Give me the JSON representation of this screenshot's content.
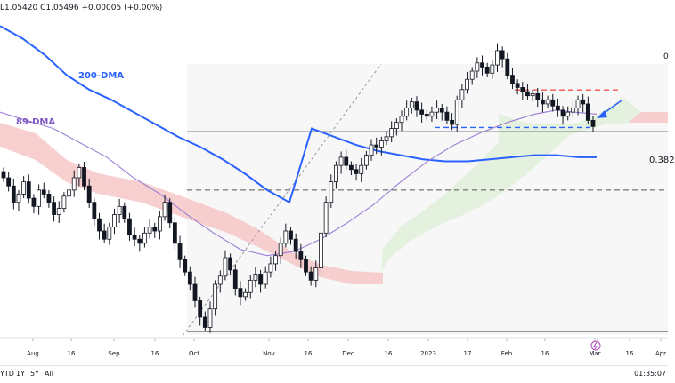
{
  "ohlc": {
    "text": "L1.05420 C1.05496 +0.00005 (+0.00%)"
  },
  "annotations": {
    "dma200": "200-DMA",
    "dma89": "89-DMA",
    "fib": "0.382",
    "edge": "0"
  },
  "timeframes": [
    "YTD",
    "1Y",
    "5Y",
    "All"
  ],
  "clock": "01:35:07",
  "colors": {
    "candle": "#131722",
    "dma200": "#2962ff",
    "dma89": "#9c7fd6",
    "cloud_bull": "#e2f0dc",
    "cloud_bear": "#f6c7c7",
    "hline": "#555555",
    "dashed_red": "#ef5350",
    "dashed_blue": "#2962ff",
    "arrow": "#2962ff",
    "event": "#ab47bc"
  },
  "chart_data": {
    "type": "candlestick",
    "title": "",
    "x_ticks": [
      "Aug",
      "16",
      "Sep",
      "16",
      "Oct",
      "Nov",
      "16",
      "Dec",
      "16",
      "2023",
      "17",
      "Feb",
      "16",
      "Mar",
      "16",
      "Apr"
    ],
    "price_ylim": [
      0.952,
      1.108
    ],
    "closes": [
      1.03,
      1.026,
      1.018,
      1.022,
      1.028,
      1.02,
      1.016,
      1.024,
      1.022,
      1.018,
      1.012,
      1.015,
      1.021,
      1.024,
      1.03,
      1.035,
      1.026,
      1.018,
      1.01,
      1.004,
      1.0,
      1.006,
      1.012,
      1.016,
      1.01,
      1.002,
      1.0,
      0.998,
      1.003,
      1.006,
      1.004,
      1.011,
      1.018,
      1.008,
      0.998,
      0.99,
      0.984,
      0.978,
      0.97,
      0.962,
      0.957,
      0.966,
      0.978,
      0.982,
      0.991,
      0.985,
      0.976,
      0.972,
      0.974,
      0.98,
      0.983,
      0.978,
      0.984,
      0.988,
      0.992,
      0.998,
      1.004,
      1.0,
      0.994,
      0.99,
      0.984,
      0.98,
      0.986,
      1.003,
      1.018,
      1.028,
      1.036,
      1.04,
      1.036,
      1.034,
      1.032,
      1.036,
      1.041,
      1.046,
      1.045,
      1.048,
      1.05,
      1.054,
      1.057,
      1.06,
      1.064,
      1.067,
      1.063,
      1.061,
      1.06,
      1.062,
      1.064,
      1.062,
      1.058,
      1.056,
      1.068,
      1.073,
      1.078,
      1.082,
      1.086,
      1.084,
      1.081,
      1.085,
      1.092,
      1.088,
      1.08,
      1.076,
      1.074,
      1.072,
      1.07,
      1.071,
      1.068,
      1.066,
      1.068,
      1.065,
      1.063,
      1.06,
      1.062,
      1.064,
      1.068,
      1.066,
      1.058,
      1.055
    ],
    "hlines": [
      {
        "value": 1.103,
        "style": "solid"
      },
      {
        "value": 1.0525,
        "style": "solid",
        "label": "0.382"
      },
      {
        "value": 1.024,
        "style": "dashed"
      },
      {
        "value": 0.955,
        "style": "solid"
      }
    ],
    "dashed_levels": [
      {
        "value": 1.0728,
        "color": "red"
      },
      {
        "value": 1.0545,
        "color": "blue"
      }
    ],
    "series": [
      {
        "name": "200-DMA",
        "points": [
          [
            0,
            1.104
          ],
          [
            25,
            1.098
          ],
          [
            50,
            1.09
          ],
          [
            75,
            1.08
          ],
          [
            100,
            1.073
          ],
          [
            125,
            1.068
          ],
          [
            150,
            1.062
          ],
          [
            175,
            1.056
          ],
          [
            200,
            1.05
          ],
          [
            225,
            1.045
          ],
          [
            250,
            1.039
          ],
          [
            275,
            1.032
          ],
          [
            300,
            1.024
          ],
          [
            325,
            1.018
          ],
          [
            350,
            1.054
          ],
          [
            375,
            1.05
          ],
          [
            400,
            1.046
          ],
          [
            425,
            1.043
          ],
          [
            450,
            1.041
          ],
          [
            475,
            1.039
          ],
          [
            500,
            1.038
          ],
          [
            525,
            1.038
          ],
          [
            550,
            1.039
          ],
          [
            575,
            1.04
          ],
          [
            600,
            1.041
          ],
          [
            625,
            1.041
          ],
          [
            650,
            1.04
          ],
          [
            670,
            1.04
          ]
        ]
      },
      {
        "name": "89-DMA",
        "points": [
          [
            0,
            1.062
          ],
          [
            30,
            1.058
          ],
          [
            60,
            1.054
          ],
          [
            90,
            1.047
          ],
          [
            120,
            1.04
          ],
          [
            150,
            1.03
          ],
          [
            180,
            1.022
          ],
          [
            210,
            1.012
          ],
          [
            240,
            1.003
          ],
          [
            270,
            0.995
          ],
          [
            300,
            0.992
          ],
          [
            330,
            0.994
          ],
          [
            360,
            1.0
          ],
          [
            390,
            1.008
          ],
          [
            420,
            1.017
          ],
          [
            450,
            1.028
          ],
          [
            480,
            1.038
          ],
          [
            510,
            1.046
          ],
          [
            540,
            1.052
          ],
          [
            570,
            1.057
          ],
          [
            600,
            1.061
          ],
          [
            625,
            1.063
          ],
          [
            645,
            1.062
          ],
          [
            670,
            1.061
          ]
        ]
      }
    ]
  }
}
